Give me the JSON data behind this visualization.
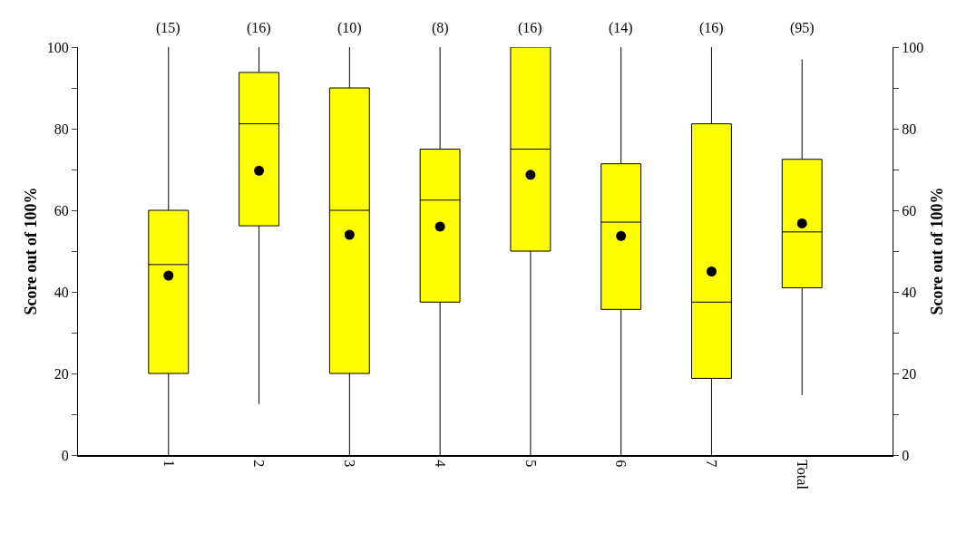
{
  "chart_data": {
    "type": "box",
    "ylabel": "Score out of 100%",
    "y2label": "Score out of 100%",
    "categories": [
      "1",
      "2",
      "3",
      "4",
      "5",
      "6",
      "7",
      "Total"
    ],
    "boxes": [
      {
        "low": 0,
        "q1": 20,
        "median": 46.7,
        "q3": 60,
        "high": 100,
        "mean": 44
      },
      {
        "low": 12.5,
        "q1": 56.2,
        "median": 81.2,
        "q3": 93.8,
        "high": 100,
        "mean": 69.7
      },
      {
        "low": 0,
        "q1": 20,
        "median": 60,
        "q3": 90,
        "high": 100,
        "mean": 54
      },
      {
        "low": 0,
        "q1": 37.5,
        "median": 62.5,
        "q3": 75,
        "high": 100,
        "mean": 56
      },
      {
        "low": 0,
        "q1": 50,
        "median": 75,
        "q3": 100,
        "high": 100,
        "mean": 68.7
      },
      {
        "low": 0,
        "q1": 35.7,
        "median": 57.1,
        "q3": 71.4,
        "high": 100,
        "mean": 53.7
      },
      {
        "low": 0,
        "q1": 18.8,
        "median": 37.5,
        "q3": 81.2,
        "high": 100,
        "mean": 45
      },
      {
        "low": 14.7,
        "q1": 41,
        "median": 54.7,
        "q3": 72.5,
        "high": 97,
        "mean": 56.8
      }
    ],
    "color": "#ffff00",
    "annotations": [
      "(15)",
      "(16)",
      "(10)",
      "(8)",
      "(16)",
      "(14)",
      "(16)",
      "(95)"
    ],
    "ylim": [
      0,
      100
    ],
    "yticks": [
      0,
      {
        "value": 10,
        "label": null
      },
      20,
      {
        "value": 30,
        "label": null
      },
      40,
      {
        "value": 50,
        "label": null
      },
      60,
      {
        "value": 70,
        "label": null
      },
      80,
      {
        "value": 90,
        "label": null
      },
      100
    ],
    "y2lim": [
      0,
      100
    ],
    "y2ticks": [
      0,
      {
        "value": 10,
        "label": null
      },
      20,
      {
        "value": 30,
        "label": null
      },
      40,
      {
        "value": 50,
        "label": null
      },
      60,
      {
        "value": 70,
        "label": null
      },
      80,
      {
        "value": 90,
        "label": null
      },
      100
    ],
    "grid": false
  }
}
